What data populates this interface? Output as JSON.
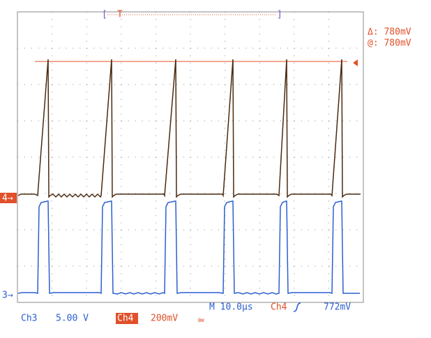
{
  "trigger_marker": "T",
  "cursor": {
    "delta": "Δ: 780mV",
    "at": "@: 780mV"
  },
  "channel_markers": {
    "ch4": "4→",
    "ch3": "3→"
  },
  "status": {
    "ch3_label": "Ch3",
    "ch3_scale": "5.00 V",
    "ch4_label": "Ch4",
    "ch4_scale": "200mV",
    "bandwidth": "BW",
    "timebase": "M 10.0µs",
    "trigger_source": "Ch4",
    "trigger_level": "772mV"
  }
}
